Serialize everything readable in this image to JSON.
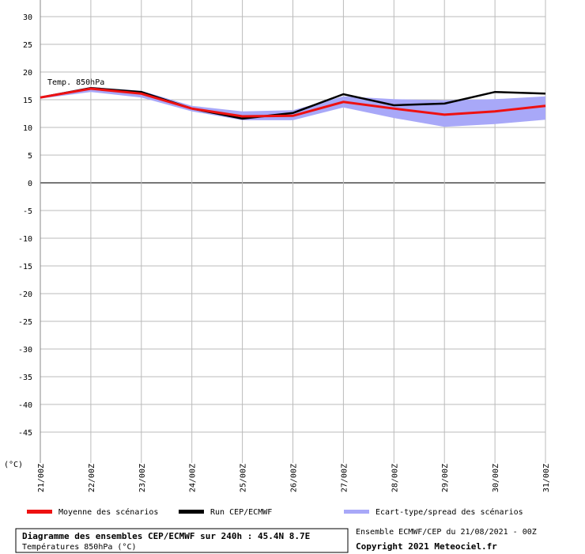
{
  "chart_data": {
    "type": "line",
    "annotation": "Temp. 850hPa",
    "y_unit": "(°C)",
    "categories": [
      "21/00Z",
      "22/00Z",
      "23/00Z",
      "24/00Z",
      "25/00Z",
      "26/00Z",
      "27/00Z",
      "28/00Z",
      "29/00Z",
      "30/00Z",
      "31/00Z"
    ],
    "spread": {
      "name": "Ecart-type/spread des scénarios",
      "color": "#a8a8f8",
      "low": [
        15.2,
        16.4,
        15.4,
        12.9,
        11.3,
        11.3,
        13.6,
        11.7,
        10.1,
        10.6,
        11.4
      ],
      "high": [
        15.6,
        17.3,
        16.6,
        13.9,
        12.9,
        13.1,
        15.6,
        15.1,
        14.9,
        15.1,
        15.6
      ]
    },
    "series": [
      {
        "name": "Moyenne des scénarios",
        "color": "#ee1111",
        "values": [
          15.4,
          17.0,
          16.1,
          13.4,
          12.0,
          12.1,
          14.6,
          13.4,
          12.3,
          12.9,
          13.9
        ]
      },
      {
        "name": "Run CEP/ECMWF",
        "color": "#000000",
        "values": [
          15.4,
          17.1,
          16.4,
          13.4,
          11.6,
          12.6,
          16.0,
          14.0,
          14.3,
          16.4,
          16.1
        ]
      }
    ],
    "ylim": [
      -50,
      30
    ],
    "yticks": [
      -45,
      -40,
      -35,
      -30,
      -25,
      -20,
      -15,
      -10,
      -5,
      0,
      5,
      10,
      15,
      20,
      25,
      30
    ],
    "grid": true
  },
  "footer": {
    "title": "Diagramme des ensembles CEP/ECMWF sur 240h : 45.4N 8.7E",
    "subtitle": "Températures 850hPa (°C)",
    "run": "Ensemble ECMWF/CEP du 21/08/2021 - 00Z",
    "copyright": "Copyright 2021 Meteociel.fr"
  }
}
